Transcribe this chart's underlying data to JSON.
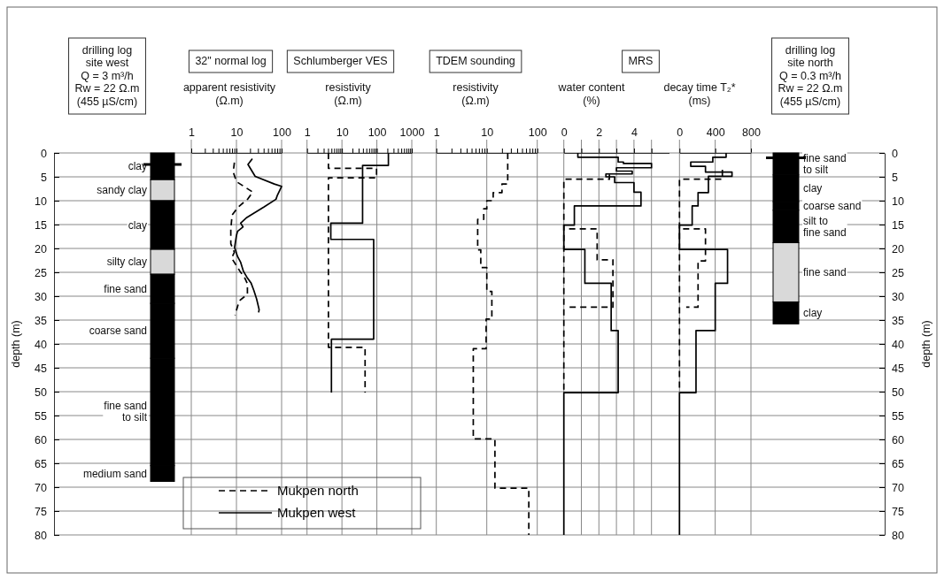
{
  "chart_data": [
    {
      "type": "bar",
      "stacked": true,
      "title": "drilling log\nsite west\nQ = 3  m³/h\nRw = 22    Ω.m\n(455 µS/cm)",
      "ylabel": "depth (m)",
      "ylim": [
        80,
        0
      ],
      "yticks": [
        0,
        5,
        10,
        15,
        20,
        25,
        30,
        35,
        40,
        45,
        50,
        55,
        60,
        65,
        70,
        75,
        80
      ],
      "grid": "y",
      "categories": [
        null
      ],
      "series": [
        {
          "name": "clay",
          "color": "#000000",
          "values": [
            5.6
          ]
        },
        {
          "name": "sandy clay",
          "color": "#d9d9d9",
          "values": [
            4.4
          ]
        },
        {
          "name": "clay",
          "color": "#000000",
          "values": [
            10.2
          ]
        },
        {
          "name": "silty clay",
          "color": "#d9d9d9",
          "values": [
            5.2
          ]
        },
        {
          "name": "fine sand",
          "color": "#000000",
          "values": [
            6.1
          ]
        },
        {
          "name": "coarse sand",
          "color": "#000000",
          "values": [
            11.5
          ]
        },
        {
          "name": "fine sand to silt",
          "color": "#000000",
          "values": [
            22.5
          ]
        },
        {
          "name": "medium sand",
          "color": "#000000",
          "values": [
            3.3
          ]
        }
      ],
      "ref_lines": [
        {
          "axis": "y",
          "value": 2.4,
          "color": "#000000"
        }
      ]
    },
    {
      "type": "line",
      "title": "32\" normal log",
      "xlabel": "apparent resistivity\n(Ω.m)",
      "log": "x",
      "xlim": [
        1,
        100
      ],
      "xticks": [
        1,
        {
          "value": 2,
          "label": null
        },
        {
          "value": 3,
          "label": null
        },
        {
          "value": 4,
          "label": null
        },
        {
          "value": 5,
          "label": null
        },
        {
          "value": 6,
          "label": null
        },
        {
          "value": 7,
          "label": null
        },
        {
          "value": 8,
          "label": null
        },
        {
          "value": 9,
          "label": null
        },
        10,
        {
          "value": 20,
          "label": null
        },
        {
          "value": 30,
          "label": null
        },
        {
          "value": 40,
          "label": null
        },
        {
          "value": 50,
          "label": null
        },
        {
          "value": 60,
          "label": null
        },
        {
          "value": 70,
          "label": null
        },
        {
          "value": 80,
          "label": null
        },
        {
          "value": 90,
          "label": null
        },
        100
      ],
      "ylim": [
        80,
        0
      ],
      "yticks": [
        0,
        5,
        10,
        15,
        20,
        25,
        30,
        35,
        40,
        45,
        50,
        55,
        60,
        65,
        70,
        75,
        80
      ],
      "tick_labels": "x",
      "grid": true,
      "series": [
        {
          "color": "#000000",
          "line_style": "dashed",
          "x": [
            9,
            8.5,
            10,
            23,
            18,
            11,
            8,
            7.5,
            7.5,
            9,
            7.8,
            12,
            15,
            17.5,
            17.5,
            11.5,
            9.3
          ],
          "values": [
            2,
            4,
            6,
            8.2,
            9.6,
            11.3,
            13,
            16,
            19,
            20.8,
            22,
            24.8,
            26,
            27.4,
            29.6,
            31,
            34
          ]
        },
        {
          "color": "#000000",
          "line_style": "solid",
          "x": [
            22.5,
            18,
            26,
            69,
            100,
            81,
            75,
            41,
            17,
            12.4,
            14,
            10.6,
            10,
            9.1,
            10.6,
            12.4,
            14.3,
            17,
            21,
            24.3,
            28,
            31.8,
            31
          ],
          "values": [
            1.2,
            2.4,
            4.9,
            6.5,
            7,
            8.8,
            9.7,
            11.3,
            13.5,
            14.7,
            15.5,
            16.4,
            17.3,
            19.8,
            21.7,
            22.9,
            24.8,
            26,
            27.2,
            28.8,
            30.6,
            32.8,
            33.4
          ]
        }
      ]
    },
    {
      "type": "line",
      "title": "Schlumberger VES",
      "xlabel": "resistivity\n(Ω.m)",
      "log": "x",
      "xlim": [
        1,
        1000
      ],
      "xticks": [
        1,
        {
          "value": 2,
          "label": null
        },
        {
          "value": 3,
          "label": null
        },
        {
          "value": 4,
          "label": null
        },
        {
          "value": 5,
          "label": null
        },
        {
          "value": 6,
          "label": null
        },
        {
          "value": 7,
          "label": null
        },
        {
          "value": 8,
          "label": null
        },
        {
          "value": 9,
          "label": null
        },
        10,
        {
          "value": 20,
          "label": null
        },
        {
          "value": 30,
          "label": null
        },
        {
          "value": 40,
          "label": null
        },
        {
          "value": 50,
          "label": null
        },
        {
          "value": 60,
          "label": null
        },
        {
          "value": 70,
          "label": null
        },
        {
          "value": 80,
          "label": null
        },
        {
          "value": 90,
          "label": null
        },
        100,
        {
          "value": 200,
          "label": null
        },
        {
          "value": 300,
          "label": null
        },
        {
          "value": 400,
          "label": null
        },
        {
          "value": 500,
          "label": null
        },
        {
          "value": 600,
          "label": null
        },
        {
          "value": 700,
          "label": null
        },
        {
          "value": 800,
          "label": null
        },
        {
          "value": 900,
          "label": null
        },
        1000
      ],
      "ylim": [
        80,
        0
      ],
      "yticks": [
        0,
        5,
        10,
        15,
        20,
        25,
        30,
        35,
        40,
        45,
        50,
        55,
        60,
        65,
        70,
        75,
        80
      ],
      "tick_labels": "x",
      "grid": true,
      "legend": "bottom left",
      "series": [
        {
          "name": "Mukpen north",
          "color": "#000000",
          "line_style": "dashed",
          "x": [
            4.1,
            4.1,
            98,
            98,
            4.1,
            4.1,
            46,
            46
          ],
          "values": [
            0,
            3.2,
            3.2,
            5.2,
            5.2,
            40.7,
            40.7,
            50.2
          ]
        },
        {
          "name": "Mukpen west",
          "color": "#000000",
          "line_style": "solid",
          "x": [
            214,
            214,
            39,
            39,
            4.8,
            4.8,
            81,
            81,
            5,
            5
          ],
          "values": [
            0,
            2.6,
            2.6,
            14.7,
            14.7,
            18.1,
            18.1,
            39,
            39,
            50.2
          ]
        }
      ]
    },
    {
      "type": "line",
      "title": "TDEM sounding",
      "xlabel": "resistivity\n(Ω.m)",
      "log": "x",
      "xlim": [
        1,
        100
      ],
      "xticks": [
        1,
        {
          "value": 2,
          "label": null
        },
        {
          "value": 3,
          "label": null
        },
        {
          "value": 4,
          "label": null
        },
        {
          "value": 5,
          "label": null
        },
        {
          "value": 6,
          "label": null
        },
        {
          "value": 7,
          "label": null
        },
        {
          "value": 8,
          "label": null
        },
        {
          "value": 9,
          "label": null
        },
        10,
        {
          "value": 20,
          "label": null
        },
        {
          "value": 30,
          "label": null
        },
        {
          "value": 40,
          "label": null
        },
        {
          "value": 50,
          "label": null
        },
        {
          "value": 60,
          "label": null
        },
        {
          "value": 70,
          "label": null
        },
        {
          "value": 80,
          "label": null
        },
        {
          "value": 90,
          "label": null
        },
        100
      ],
      "ylim": [
        80,
        0
      ],
      "yticks": [
        0,
        5,
        10,
        15,
        20,
        25,
        30,
        35,
        40,
        45,
        50,
        55,
        60,
        65,
        70,
        75,
        80
      ],
      "tick_labels": "x",
      "grid": true,
      "series": [
        {
          "color": "#000000",
          "line_style": "dashed",
          "x": [
            26,
            26,
            20,
            20,
            13.4,
            13.4,
            10,
            10,
            8.7,
            8.7,
            6.6,
            6.6,
            7.6,
            7.6,
            10,
            10,
            12.6,
            12.6,
            9.7,
            9.7,
            5.4,
            5.4,
            14.5,
            14.5,
            68,
            68
          ],
          "values": [
            0,
            6.5,
            6.5,
            8.3,
            8.3,
            10,
            10,
            11.7,
            11.7,
            13.9,
            13.9,
            20.3,
            20.3,
            24,
            24,
            29,
            29,
            34.8,
            34.8,
            41,
            41,
            59.9,
            59.9,
            70.2,
            70.2,
            80
          ]
        }
      ]
    },
    {
      "type": "line",
      "title": "MRS",
      "xlabel": "water content\n(%)",
      "xlim": [
        0,
        6
      ],
      "xticks": [
        0,
        {
          "value": 1,
          "label": null
        },
        2,
        {
          "value": 3,
          "label": null
        },
        4,
        {
          "value": 5,
          "label": null
        }
      ],
      "ylim": [
        80,
        0
      ],
      "yticks": [
        0,
        5,
        10,
        15,
        20,
        25,
        30,
        35,
        40,
        45,
        50,
        55,
        60,
        65,
        70,
        75,
        80
      ],
      "tick_labels": "x",
      "grid": true,
      "series": [
        {
          "color": "#000000",
          "line_style": "dashed",
          "x": [
            2.6,
            2.6,
            0,
            0,
            null,
            0.3,
            1.9,
            1.9,
            2.8,
            2.8,
            0.3
          ],
          "values": [
            4.5,
            5.5,
            5.5,
            50,
            null,
            15.9,
            15.9,
            22.4,
            22.4,
            32.3,
            32.3
          ]
        },
        {
          "color": "#000000",
          "line_style": "solid",
          "x": [
            0.8,
            0.8,
            3.1,
            3.1,
            3.4,
            3.4,
            5,
            5,
            3,
            3,
            3.9,
            3.9,
            2.4,
            2.4,
            2.9,
            2.9,
            4,
            4,
            4.4,
            4.4,
            0.6,
            0.6,
            0,
            0,
            1.2,
            1.2,
            2.7,
            2.7,
            3.1,
            3.1,
            0,
            0
          ],
          "values": [
            0,
            0.9,
            0.9,
            1.9,
            1.9,
            2.2,
            2.2,
            3.1,
            3.1,
            3.8,
            3.8,
            4.4,
            4.4,
            5,
            5,
            6.2,
            6.2,
            8.2,
            8.2,
            11.1,
            11.1,
            15.1,
            15.1,
            20.2,
            20.2,
            27.3,
            27.3,
            37.2,
            37.2,
            50.2,
            50.2,
            80
          ]
        }
      ]
    },
    {
      "type": "line",
      "xlabel": "decay time T₂*\n(ms)",
      "xlim": [
        0,
        800
      ],
      "xticks": [
        0,
        400,
        800
      ],
      "ylim": [
        80,
        0
      ],
      "yticks": [
        0,
        5,
        10,
        15,
        20,
        25,
        30,
        35,
        40,
        45,
        50,
        55,
        60,
        65,
        70,
        75,
        80
      ],
      "tick_labels": "x",
      "grid": true,
      "series": [
        {
          "color": "#000000",
          "line_style": "dashed",
          "x": [
            480,
            480,
            0,
            0,
            null,
            40,
            291,
            291,
            208,
            208,
            75
          ],
          "values": [
            3.5,
            5.5,
            5.5,
            50,
            null,
            15.9,
            15.9,
            22.6,
            22.6,
            32.3,
            32.3
          ]
        },
        {
          "color": "#000000",
          "line_style": "solid",
          "x": [
            522,
            522,
            373,
            373,
            126,
            126,
            291,
            291,
            588,
            588,
            324,
            324,
            208,
            208,
            142,
            142,
            0,
            0,
            538,
            538,
            400,
            400,
            185,
            185,
            0,
            0
          ],
          "values": [
            0,
            0.9,
            0.9,
            1.9,
            1.9,
            2.8,
            2.8,
            4,
            4,
            4.9,
            4.9,
            8.3,
            8.3,
            11.1,
            11.1,
            15.1,
            15.1,
            20.2,
            20.2,
            27.3,
            27.3,
            37.2,
            37.2,
            50.2,
            50.2,
            80
          ]
        }
      ]
    },
    {
      "type": "bar",
      "stacked": true,
      "title": "drilling log\nsite north\nQ = 0.3 m³/h\nRw = 22    Ω.m\n(455 µS/cm)",
      "ylabel": "depth (m)",
      "ylim": [
        80,
        0
      ],
      "yticks": [
        0,
        5,
        10,
        15,
        20,
        25,
        30,
        35,
        40,
        45,
        50,
        55,
        60,
        65,
        70,
        75,
        80
      ],
      "grid": "y",
      "categories": [
        null
      ],
      "series": [
        {
          "name": "fine sand to silt",
          "color": "#000000",
          "values": [
            4.6
          ]
        },
        {
          "name": "clay",
          "color": "#000000",
          "values": [
            5.6
          ]
        },
        {
          "name": "coarse sand",
          "color": "#000000",
          "values": [
            1.8
          ]
        },
        {
          "name": "silt to fine sand",
          "color": "#000000",
          "values": [
            6.8
          ]
        },
        {
          "name": "fine sand",
          "color": "#d9d9d9",
          "values": [
            12.4
          ]
        },
        {
          "name": "clay",
          "color": "#000000",
          "values": [
            4.6
          ]
        }
      ],
      "ref_lines": [
        {
          "axis": "y",
          "value": 1,
          "color": "#000000"
        }
      ]
    }
  ]
}
